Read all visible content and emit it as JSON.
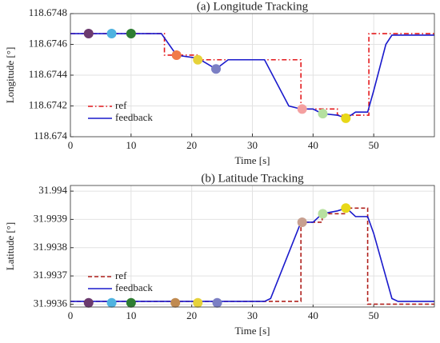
{
  "chart_data": [
    {
      "type": "line",
      "title": "(a) Longitude Tracking",
      "xlabel": "Time [s]",
      "ylabel": "Longitude [°]",
      "xlim": [
        0,
        60
      ],
      "xticks": [
        0,
        10,
        20,
        30,
        40,
        50
      ],
      "ylim": [
        118.674,
        118.6748
      ],
      "yticks": [
        118.674,
        118.6742,
        118.6744,
        118.6746,
        118.6748
      ],
      "grid": true,
      "legend": "lower left",
      "series": [
        {
          "name": "ref",
          "color": "#e3191c",
          "style": "dashdot",
          "x": [
            0,
            15.5,
            15.5,
            21,
            21,
            38,
            38,
            44,
            44,
            49.2,
            49.2,
            60
          ],
          "values": [
            118.67467,
            118.67467,
            118.67453,
            118.67453,
            118.6745,
            118.6745,
            118.67418,
            118.67418,
            118.67414,
            118.67414,
            118.67467,
            118.67467
          ]
        },
        {
          "name": "feedback",
          "color": "#1a1acc",
          "style": "solid",
          "x": [
            0,
            15,
            17.5,
            21,
            24,
            26,
            32,
            36,
            38,
            40,
            41.5,
            44,
            45.5,
            47,
            49,
            50,
            52,
            53,
            60
          ],
          "values": [
            118.67467,
            118.67467,
            118.67453,
            118.67451,
            118.67444,
            118.6745,
            118.6745,
            118.6742,
            118.67418,
            118.67418,
            118.67415,
            118.67414,
            118.67412,
            118.67416,
            118.67416,
            118.6743,
            118.6746,
            118.67466,
            118.67466
          ]
        }
      ],
      "markers": {
        "x": [
          3,
          6.8,
          10,
          17.5,
          21,
          24,
          38.2,
          41.6,
          45.4
        ],
        "values": [
          118.67467,
          118.67467,
          118.67467,
          118.67453,
          118.6745,
          118.67444,
          118.67418,
          118.67415,
          118.67412
        ],
        "colors": [
          "#6b3a6e",
          "#4fb3e0",
          "#2e7d32",
          "#f07b4a",
          "#e6d23a",
          "#7b7fc4",
          "#f4a0a0",
          "#b5e0a0",
          "#e8d818"
        ]
      }
    },
    {
      "type": "line",
      "title": "(b) Latitude Tracking",
      "xlabel": "Time [s]",
      "ylabel": "Latitude [°]",
      "xlim": [
        0,
        60
      ],
      "xticks": [
        0,
        10,
        20,
        30,
        40,
        50
      ],
      "ylim": [
        31.99359,
        31.99402
      ],
      "yticks": [
        31.9936,
        31.9937,
        31.9938,
        31.9939,
        31.994
      ],
      "grid": true,
      "legend": "lower left",
      "series": [
        {
          "name": "ref",
          "color": "#b0201c",
          "style": "dashed",
          "x": [
            0,
            38,
            38,
            41.5,
            41.5,
            45.5,
            45.5,
            49,
            49,
            60
          ],
          "values": [
            31.99361,
            31.99361,
            31.99389,
            31.99389,
            31.99392,
            31.99392,
            31.99394,
            31.99394,
            31.9936,
            31.9936
          ]
        },
        {
          "name": "feedback",
          "color": "#1a1acc",
          "style": "solid",
          "x": [
            0,
            32,
            33,
            38,
            40,
            41.5,
            44,
            45.5,
            47,
            49,
            50,
            53,
            54,
            60
          ],
          "values": [
            31.99361,
            31.99361,
            31.99362,
            31.99389,
            31.99389,
            31.99392,
            31.99393,
            31.99394,
            31.99391,
            31.99391,
            31.99385,
            31.99362,
            31.99361,
            31.99361
          ]
        }
      ],
      "markers": {
        "x": [
          3,
          6.8,
          10,
          17.3,
          21,
          24.2,
          38.2,
          41.6,
          45.4
        ],
        "values": [
          31.993605,
          31.993605,
          31.993605,
          31.993605,
          31.993605,
          31.993605,
          31.99389,
          31.99392,
          31.99394
        ],
        "colors": [
          "#6b3a6e",
          "#4fb3e0",
          "#2e7d32",
          "#c08a50",
          "#e6d23a",
          "#7b7fc4",
          "#c8a090",
          "#b8e0a0",
          "#e8d818"
        ]
      }
    }
  ]
}
